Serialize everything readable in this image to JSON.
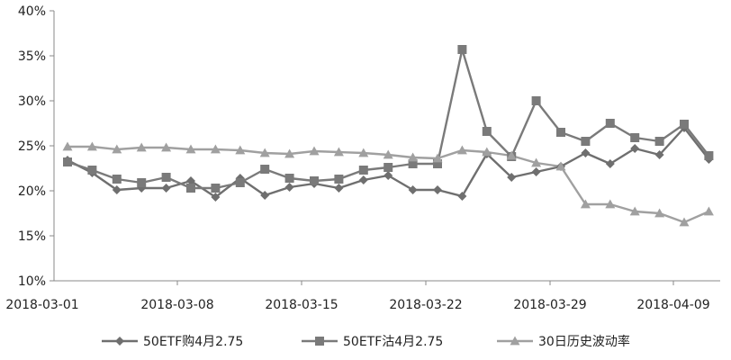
{
  "chart_data": {
    "type": "line",
    "title": "",
    "xlabel": "",
    "ylabel": "",
    "ylim": [
      0.1,
      0.4
    ],
    "y_tick_labels": [
      "10%",
      "15%",
      "20%",
      "25%",
      "30%",
      "35%",
      "40%"
    ],
    "x_tick_labels": [
      "2018-03-01",
      "2018-03-08",
      "2018-03-15",
      "2018-03-22",
      "2018-03-29",
      "2018-04-09"
    ],
    "dates": [
      "2018-03-01",
      "2018-03-02",
      "2018-03-05",
      "2018-03-06",
      "2018-03-07",
      "2018-03-08",
      "2018-03-09",
      "2018-03-12",
      "2018-03-13",
      "2018-03-14",
      "2018-03-15",
      "2018-03-16",
      "2018-03-19",
      "2018-03-20",
      "2018-03-21",
      "2018-03-22",
      "2018-03-23",
      "2018-03-26",
      "2018-03-27",
      "2018-03-28",
      "2018-03-29",
      "2018-03-30",
      "2018-04-02",
      "2018-04-03",
      "2018-04-04",
      "2018-04-09",
      "2018-04-10"
    ],
    "grid": false,
    "legend_position": "bottom",
    "series": [
      {
        "name": "50ETF购4月2.75",
        "marker": "diamond",
        "color": "#6f6f6f",
        "values": [
          0.234,
          0.22,
          0.201,
          0.203,
          0.203,
          0.211,
          0.193,
          0.214,
          0.195,
          0.204,
          0.208,
          0.203,
          0.212,
          0.217,
          0.201,
          0.201,
          0.194,
          0.241,
          0.215,
          0.221,
          0.227,
          0.242,
          0.23,
          0.247,
          0.24,
          0.27,
          0.235
        ]
      },
      {
        "name": "50ETF沽4月2.75",
        "marker": "square",
        "color": "#7a7a7a",
        "values": [
          0.232,
          0.223,
          0.213,
          0.209,
          0.215,
          0.203,
          0.203,
          0.209,
          0.224,
          0.214,
          0.211,
          0.213,
          0.223,
          0.226,
          0.23,
          0.23,
          0.357,
          0.266,
          0.238,
          0.3,
          0.265,
          0.255,
          0.275,
          0.259,
          0.255,
          0.274,
          0.239
        ]
      },
      {
        "name": "30日历史波动率",
        "marker": "triangle",
        "color": "#a0a0a0",
        "values": [
          0.249,
          0.249,
          0.246,
          0.248,
          0.248,
          0.246,
          0.246,
          0.245,
          0.242,
          0.241,
          0.244,
          0.243,
          0.242,
          0.24,
          0.237,
          0.236,
          0.245,
          0.243,
          0.239,
          0.231,
          0.227,
          0.185,
          0.185,
          0.177,
          0.175,
          0.165,
          0.177
        ]
      }
    ]
  }
}
